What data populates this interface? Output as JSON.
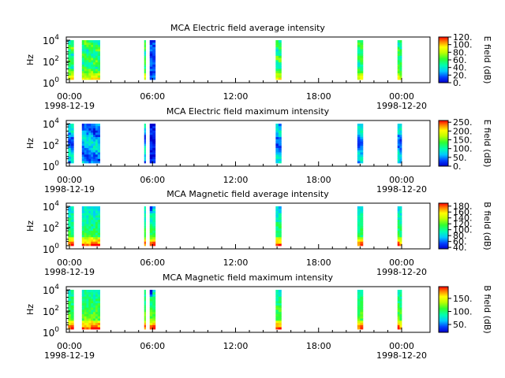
{
  "chart_data": [
    {
      "type": "heatmap",
      "title": "MCA  Electric field average intensity",
      "ylabel": "Hz",
      "y_tick_labels": [
        {
          "base": "10",
          "exp": "0"
        },
        {
          "base": "10",
          "exp": "2"
        },
        {
          "base": "10",
          "exp": "4"
        }
      ],
      "y_scale": "log",
      "ylim": [
        1,
        20000
      ],
      "x_tick_labels": [
        "00:00",
        "06:00",
        "12:00",
        "18:00",
        "00:00"
      ],
      "x_date_labels": [
        "1998-12-19",
        "1998-12-20"
      ],
      "colorbar_label": "E field (dB)",
      "colorbar_ticks": [
        "0.",
        "20.",
        "40.",
        "60.",
        "80.",
        "100.",
        "120."
      ],
      "colorbar_range": [
        0,
        120
      ],
      "data_intervals_hours": [
        [
          -0.1,
          0.3
        ],
        [
          0.9,
          2.2
        ],
        [
          5.4,
          5.5
        ],
        [
          5.8,
          6.2
        ],
        [
          14.9,
          15.3
        ],
        [
          20.8,
          21.2
        ],
        [
          23.7,
          24.0
        ]
      ],
      "profile": "e-avg"
    },
    {
      "type": "heatmap",
      "title": "MCA  Electric field maximum intensity",
      "ylabel": "Hz",
      "y_tick_labels": [
        {
          "base": "10",
          "exp": "0"
        },
        {
          "base": "10",
          "exp": "2"
        },
        {
          "base": "10",
          "exp": "4"
        }
      ],
      "y_scale": "log",
      "ylim": [
        1,
        20000
      ],
      "x_tick_labels": [
        "00:00",
        "06:00",
        "12:00",
        "18:00",
        "00:00"
      ],
      "x_date_labels": [
        "1998-12-19",
        "1998-12-20"
      ],
      "colorbar_label": "E field (dB)",
      "colorbar_ticks": [
        "0.",
        "50.",
        "100.",
        "150.",
        "200.",
        "250."
      ],
      "colorbar_range": [
        0,
        260
      ],
      "data_intervals_hours": [
        [
          -0.1,
          0.3
        ],
        [
          0.9,
          2.2
        ],
        [
          5.4,
          5.5
        ],
        [
          5.8,
          6.2
        ],
        [
          14.9,
          15.3
        ],
        [
          20.8,
          21.2
        ],
        [
          23.7,
          24.0
        ]
      ],
      "profile": "e-max"
    },
    {
      "type": "heatmap",
      "title": "MCA  Magnetic field average intensity",
      "ylabel": "Hz",
      "y_tick_labels": [
        {
          "base": "10",
          "exp": "0"
        },
        {
          "base": "10",
          "exp": "2"
        },
        {
          "base": "10",
          "exp": "4"
        }
      ],
      "y_scale": "log",
      "ylim": [
        1,
        20000
      ],
      "x_tick_labels": [
        "00:00",
        "06:00",
        "12:00",
        "18:00",
        "00:00"
      ],
      "x_date_labels": [
        "1998-12-19",
        "1998-12-20"
      ],
      "colorbar_label": "B field (dB)",
      "colorbar_ticks": [
        "40.",
        "60.",
        "80.",
        "100.",
        "120.",
        "140.",
        "160.",
        "180."
      ],
      "colorbar_range": [
        35,
        190
      ],
      "data_intervals_hours": [
        [
          -0.1,
          0.3
        ],
        [
          0.9,
          2.2
        ],
        [
          5.4,
          5.5
        ],
        [
          5.8,
          6.2
        ],
        [
          14.9,
          15.3
        ],
        [
          20.8,
          21.2
        ],
        [
          23.7,
          24.0
        ]
      ],
      "profile": "b-avg"
    },
    {
      "type": "heatmap",
      "title": "MCA  Magnetic field maximum intensity",
      "ylabel": "Hz",
      "y_tick_labels": [
        {
          "base": "10",
          "exp": "0"
        },
        {
          "base": "10",
          "exp": "2"
        },
        {
          "base": "10",
          "exp": "4"
        }
      ],
      "y_scale": "log",
      "ylim": [
        1,
        20000
      ],
      "x_tick_labels": [
        "00:00",
        "06:00",
        "12:00",
        "18:00",
        "00:00"
      ],
      "x_date_labels": [
        "1998-12-19",
        "1998-12-20"
      ],
      "colorbar_label": "B field (dB)",
      "colorbar_ticks": [
        "50.",
        "100.",
        "150."
      ],
      "colorbar_range": [
        20,
        195
      ],
      "data_intervals_hours": [
        [
          -0.1,
          0.3
        ],
        [
          0.9,
          2.2
        ],
        [
          5.4,
          5.5
        ],
        [
          5.8,
          6.2
        ],
        [
          14.9,
          15.3
        ],
        [
          20.8,
          21.2
        ],
        [
          23.7,
          24.0
        ]
      ],
      "profile": "b-max"
    }
  ]
}
